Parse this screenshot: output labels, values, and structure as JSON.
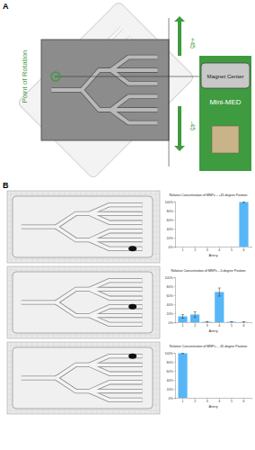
{
  "panel_labels": [
    "A",
    "B"
  ],
  "diagram": {
    "point_of_rotation": "Point of Rotation",
    "up_label": "+45",
    "down_label": "-45",
    "magnet_center": "Magnet Center",
    "device": "Mini-MED"
  },
  "chart_data": [
    {
      "type": "bar",
      "title": "Relative Concentration of MNPs – +45 degree Position",
      "x_label": "Artery",
      "categories": [
        "1",
        "2",
        "3",
        "4",
        "5",
        "6"
      ],
      "values": [
        0,
        0,
        0,
        0,
        0,
        99
      ],
      "errors": [
        0,
        0,
        0,
        0,
        0,
        1
      ],
      "color": "#56b6f7",
      "ylim": [
        0,
        100
      ],
      "yticks": [
        {
          "value": 0,
          "label": "0%"
        },
        {
          "value": 20,
          "label": "20%"
        },
        {
          "value": 40,
          "label": "40%"
        },
        {
          "value": 60,
          "label": "60%"
        },
        {
          "value": 80,
          "label": "80%"
        },
        {
          "value": 100,
          "label": "100%"
        }
      ],
      "grid": false
    },
    {
      "type": "bar",
      "title": "Relative Concentration of MNPs – 0 degree Position",
      "x_label": "Artery",
      "categories": [
        "1",
        "2",
        "3",
        "4",
        "5",
        "6"
      ],
      "values": [
        13,
        17,
        1,
        67,
        1,
        0.5
      ],
      "errors": [
        4,
        6,
        0.5,
        9,
        0.3,
        0.2
      ],
      "color": "#56b6f7",
      "ylim": [
        0,
        100
      ],
      "yticks": [
        {
          "value": 0,
          "label": "0%"
        },
        {
          "value": 20,
          "label": "20%"
        },
        {
          "value": 40,
          "label": "40%"
        },
        {
          "value": 60,
          "label": "60%"
        },
        {
          "value": 80,
          "label": "80%"
        },
        {
          "value": 100,
          "label": "100%"
        }
      ],
      "grid": false
    },
    {
      "type": "bar",
      "title": "Relative Concentration of MNPs – -45 degree Position",
      "x_label": "Artery",
      "categories": [
        "1",
        "2",
        "3",
        "4",
        "5",
        "6"
      ],
      "values": [
        99,
        0,
        0,
        0,
        0,
        0
      ],
      "errors": [
        1,
        0,
        0,
        0,
        0,
        0
      ],
      "color": "#56b6f7",
      "ylim": [
        0,
        100
      ],
      "yticks": [
        {
          "value": 0,
          "label": "0%"
        },
        {
          "value": 20,
          "label": "20%"
        },
        {
          "value": 40,
          "label": "40%"
        },
        {
          "value": 60,
          "label": "60%"
        },
        {
          "value": 80,
          "label": "80%"
        },
        {
          "value": 100,
          "label": "100%"
        }
      ],
      "grid": false
    }
  ]
}
